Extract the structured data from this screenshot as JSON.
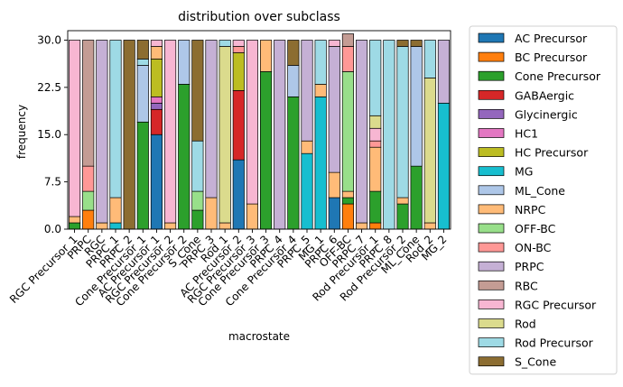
{
  "chart_data": {
    "type": "bar",
    "stacked": true,
    "title": "distribution over subclass",
    "xlabel": "macrostate",
    "ylabel": "frequency",
    "ylim": [
      0,
      31.5
    ],
    "yticks": [
      "0.0",
      "7.5",
      "15.0",
      "22.5",
      "30.0"
    ],
    "ytick_values": [
      0,
      7.5,
      15,
      22.5,
      30
    ],
    "grid": false,
    "legend_position": "outside-right",
    "categories": [
      "RGC Precursor_1",
      "PRPC",
      "RGC",
      "PRPC_1",
      "PRPC_2",
      "Cone Precursor_1",
      "AC Precursor_1",
      "RGC Precursor_2",
      "Cone Precursor_2",
      "S_Cone",
      "PRPC_3",
      "Rod_1",
      "AC Precursor_2",
      "RGC Precursor_3",
      "Cone Precursor_3",
      "PRPC_4",
      "Cone Precursor_4",
      "PRPC_5",
      "MG_1",
      "PRPC_6",
      "OFF-BC",
      "PRPC_7",
      "Rod Precursor_1",
      "PRPC_8",
      "Rod Precursor_2",
      "ML_Cone",
      "Rod_2",
      "MG_2"
    ],
    "series": [
      {
        "name": "AC Precursor",
        "color": "#1f77b4",
        "values": [
          0,
          0,
          0,
          0,
          0,
          0,
          15,
          0,
          0,
          0,
          0,
          0,
          11,
          0,
          0,
          0,
          0,
          0,
          0,
          5,
          0,
          0,
          0,
          0,
          0,
          0,
          0,
          0
        ]
      },
      {
        "name": "BC Precursor",
        "color": "#ff7f0e",
        "values": [
          0,
          3,
          0,
          0,
          0,
          0,
          0,
          0,
          0,
          0,
          0,
          0,
          0,
          0,
          0,
          0,
          0,
          0,
          0,
          0,
          4,
          0,
          1,
          0,
          0,
          0,
          0,
          0
        ]
      },
      {
        "name": "Cone Precursor",
        "color": "#2ca02c",
        "values": [
          1,
          0,
          0,
          0,
          0,
          17,
          0,
          0,
          23,
          3,
          0,
          0,
          0,
          0,
          25,
          0,
          21,
          0,
          0,
          0,
          1,
          0,
          5,
          0,
          4,
          10,
          0,
          0
        ]
      },
      {
        "name": "GABAergic",
        "color": "#d62728",
        "values": [
          0,
          0,
          0,
          0,
          0,
          0,
          4,
          0,
          0,
          0,
          0,
          0,
          11,
          0,
          0,
          0,
          0,
          0,
          0,
          0,
          0,
          0,
          0,
          0,
          0,
          0,
          0,
          0
        ]
      },
      {
        "name": "Glycinergic",
        "color": "#9467bd",
        "values": [
          0,
          0,
          0,
          0,
          0,
          0,
          1,
          0,
          0,
          0,
          0,
          0,
          0,
          0,
          0,
          0,
          0,
          0,
          0,
          0,
          0,
          0,
          0,
          0,
          0,
          0,
          0,
          0
        ]
      },
      {
        "name": "HC1",
        "color": "#e377c2",
        "values": [
          0,
          0,
          0,
          0,
          0,
          0,
          1,
          0,
          0,
          0,
          0,
          0,
          0,
          0,
          0,
          0,
          0,
          0,
          0,
          0,
          0,
          0,
          0,
          0,
          0,
          0,
          0,
          0
        ]
      },
      {
        "name": "HC Precursor",
        "color": "#bcbd22",
        "values": [
          0,
          0,
          0,
          0,
          0,
          0,
          6,
          0,
          0,
          0,
          0,
          0,
          6,
          0,
          0,
          0,
          0,
          0,
          0,
          0,
          0,
          0,
          0,
          0,
          0,
          0,
          0,
          0
        ]
      },
      {
        "name": "MG",
        "color": "#17becf",
        "values": [
          0,
          0,
          0,
          1,
          0,
          0,
          0,
          0,
          0,
          0,
          0,
          0,
          0,
          0,
          0,
          0,
          0,
          12,
          21,
          0,
          0,
          0,
          0,
          0,
          0,
          0,
          0,
          20
        ]
      },
      {
        "name": "ML_Cone",
        "color": "#aec7e8",
        "values": [
          0,
          0,
          0,
          0,
          0,
          9,
          0,
          0,
          7,
          0,
          0,
          0,
          0,
          0,
          0,
          0,
          5,
          0,
          0,
          0,
          0,
          0,
          0,
          0,
          0,
          19,
          0,
          0
        ]
      },
      {
        "name": "NRPC",
        "color": "#ffbb78",
        "values": [
          1,
          0,
          1,
          4,
          0,
          0,
          2,
          1,
          0,
          0,
          5,
          1,
          0,
          4,
          5,
          0,
          0,
          2,
          2,
          4,
          1,
          1,
          7,
          0,
          1,
          0,
          1,
          0
        ]
      },
      {
        "name": "OFF-BC",
        "color": "#98df8a",
        "values": [
          0,
          3,
          0,
          0,
          0,
          0,
          0,
          0,
          0,
          3,
          0,
          0,
          0,
          0,
          0,
          0,
          0,
          0,
          0,
          0,
          19,
          0,
          0,
          0,
          0,
          0,
          0,
          0
        ]
      },
      {
        "name": "ON-BC",
        "color": "#ff9896",
        "values": [
          0,
          4,
          0,
          0,
          0,
          0,
          0,
          0,
          0,
          0,
          0,
          0,
          1,
          0,
          0,
          0,
          0,
          0,
          0,
          0,
          4,
          0,
          1,
          0,
          0,
          0,
          0,
          0
        ]
      },
      {
        "name": "PRPC",
        "color": "#c5b0d5",
        "values": [
          0,
          0,
          29,
          0,
          0,
          0,
          0,
          0,
          0,
          0,
          25,
          0,
          0,
          0,
          0,
          30,
          0,
          16,
          0,
          20,
          0,
          29,
          0,
          0,
          0,
          0,
          0,
          10
        ]
      },
      {
        "name": "RBC",
        "color": "#c49c94",
        "values": [
          0,
          20,
          0,
          0,
          0,
          0,
          0,
          0,
          0,
          0,
          0,
          0,
          0,
          0,
          0,
          0,
          0,
          0,
          0,
          0,
          2,
          0,
          0,
          0,
          0,
          0,
          0,
          0
        ]
      },
      {
        "name": "RGC Precursor",
        "color": "#f7b6d2",
        "values": [
          28,
          0,
          0,
          0,
          0,
          0,
          1,
          29,
          0,
          0,
          0,
          0,
          1,
          26,
          0,
          0,
          0,
          0,
          0,
          1,
          0,
          0,
          2,
          0,
          0,
          0,
          0,
          0
        ]
      },
      {
        "name": "Rod",
        "color": "#dbdb8d",
        "values": [
          0,
          0,
          0,
          0,
          0,
          0,
          0,
          0,
          0,
          0,
          0,
          28,
          0,
          0,
          0,
          0,
          0,
          0,
          0,
          0,
          0,
          0,
          2,
          0,
          0,
          0,
          23,
          0
        ]
      },
      {
        "name": "Rod Precursor",
        "color": "#9edae5",
        "values": [
          0,
          0,
          0,
          25,
          0,
          1,
          0,
          0,
          0,
          8,
          0,
          1,
          0,
          0,
          0,
          0,
          0,
          0,
          7,
          0,
          0,
          0,
          12,
          30,
          24,
          0,
          6,
          0
        ]
      },
      {
        "name": "S_Cone",
        "color": "#8c6d31",
        "values": [
          0,
          0,
          0,
          0,
          30,
          3,
          0,
          0,
          0,
          16,
          0,
          0,
          0,
          0,
          0,
          0,
          4,
          0,
          0,
          0,
          0,
          0,
          0,
          0,
          1,
          1,
          0,
          0
        ]
      }
    ]
  }
}
